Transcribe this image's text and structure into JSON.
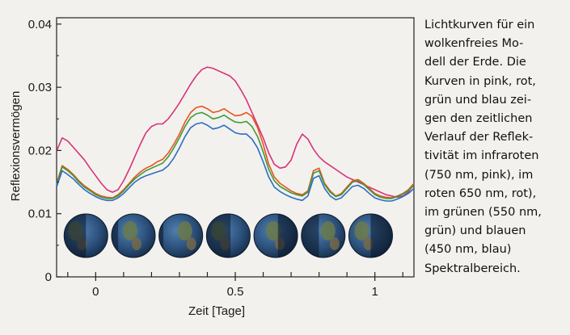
{
  "caption": {
    "lines": [
      "Lichtkurven für ein",
      "wolkenfreies Mo-",
      "dell der Erde. Die",
      "Kurven in pink, rot,",
      "grün und blau zei-",
      "gen den zeitlichen",
      "Verlauf der Reflek-",
      "tivität im infraroten",
      "(750 nm, pink), im",
      "roten 650 nm, rot),",
      "im grünen (550 nm,",
      "grün) und blauen",
      "(450 nm, blau)",
      "Spektralbereich."
    ]
  },
  "chart_data": {
    "type": "line",
    "xlabel": "Zeit  [Tage]",
    "ylabel": "Reflexionsvermögen",
    "xlim": [
      -0.14,
      1.14
    ],
    "ylim": [
      0,
      0.041
    ],
    "x_ticks": [
      0,
      0.5,
      1
    ],
    "x_tick_labels": [
      "0",
      "0.5",
      "1"
    ],
    "y_ticks": [
      0,
      0.01,
      0.02,
      0.03,
      0.04
    ],
    "y_tick_labels": [
      "0",
      "0.01",
      "0.02",
      "0.03",
      "0.04"
    ],
    "x": [
      -0.14,
      -0.12,
      -0.1,
      -0.08,
      -0.06,
      -0.04,
      -0.02,
      0.0,
      0.02,
      0.04,
      0.06,
      0.08,
      0.1,
      0.12,
      0.14,
      0.16,
      0.18,
      0.2,
      0.22,
      0.24,
      0.26,
      0.28,
      0.3,
      0.32,
      0.34,
      0.36,
      0.38,
      0.4,
      0.42,
      0.44,
      0.46,
      0.48,
      0.5,
      0.52,
      0.54,
      0.56,
      0.58,
      0.6,
      0.62,
      0.64,
      0.66,
      0.68,
      0.7,
      0.72,
      0.74,
      0.76,
      0.78,
      0.8,
      0.82,
      0.84,
      0.86,
      0.88,
      0.9,
      0.92,
      0.94,
      0.96,
      0.98,
      1.0,
      1.02,
      1.04,
      1.06,
      1.08,
      1.1,
      1.12,
      1.14
    ],
    "series": [
      {
        "color": "#d8327a",
        "values": [
          0.0199,
          0.022,
          0.0215,
          0.0205,
          0.0195,
          0.0185,
          0.0172,
          0.016,
          0.0148,
          0.0138,
          0.0134,
          0.0138,
          0.0152,
          0.017,
          0.019,
          0.021,
          0.0228,
          0.0238,
          0.0242,
          0.0242,
          0.025,
          0.0262,
          0.0275,
          0.029,
          0.0305,
          0.0318,
          0.0328,
          0.0332,
          0.033,
          0.0326,
          0.0322,
          0.0318,
          0.031,
          0.0296,
          0.028,
          0.026,
          0.024,
          0.022,
          0.0196,
          0.0178,
          0.0172,
          0.0174,
          0.0185,
          0.021,
          0.0226,
          0.0218,
          0.0202,
          0.019,
          0.0182,
          0.0176,
          0.017,
          0.0164,
          0.0158,
          0.0154,
          0.015,
          0.0146,
          0.0142,
          0.0138,
          0.0134,
          0.013,
          0.0128,
          0.0126,
          0.0128,
          0.0134,
          0.0148
        ]
      },
      {
        "color": "#e8531e",
        "values": [
          0.0148,
          0.0176,
          0.017,
          0.0162,
          0.0152,
          0.0144,
          0.0138,
          0.0132,
          0.0128,
          0.0126,
          0.0125,
          0.013,
          0.0138,
          0.0148,
          0.0158,
          0.0166,
          0.0172,
          0.0176,
          0.0182,
          0.0186,
          0.0196,
          0.021,
          0.0226,
          0.0245,
          0.026,
          0.0268,
          0.027,
          0.0266,
          0.026,
          0.0262,
          0.0266,
          0.026,
          0.0255,
          0.0256,
          0.026,
          0.0254,
          0.0236,
          0.021,
          0.0178,
          0.0158,
          0.0148,
          0.0142,
          0.0136,
          0.0132,
          0.013,
          0.0136,
          0.0168,
          0.0172,
          0.0148,
          0.0136,
          0.0128,
          0.0132,
          0.0142,
          0.0152,
          0.0154,
          0.0148,
          0.014,
          0.0132,
          0.0128,
          0.0126,
          0.0125,
          0.0128,
          0.0132,
          0.0138,
          0.0148
        ]
      },
      {
        "color": "#3f9a3a",
        "values": [
          0.0145,
          0.0174,
          0.0168,
          0.016,
          0.015,
          0.0142,
          0.0136,
          0.013,
          0.0126,
          0.0124,
          0.0124,
          0.0128,
          0.0136,
          0.0146,
          0.0155,
          0.0162,
          0.0168,
          0.0172,
          0.0176,
          0.018,
          0.019,
          0.0204,
          0.022,
          0.0238,
          0.0252,
          0.0258,
          0.026,
          0.0256,
          0.025,
          0.0252,
          0.0256,
          0.025,
          0.0245,
          0.0244,
          0.0246,
          0.0238,
          0.0222,
          0.0198,
          0.017,
          0.0152,
          0.0143,
          0.0138,
          0.0133,
          0.013,
          0.0128,
          0.0134,
          0.0164,
          0.0168,
          0.0146,
          0.0134,
          0.0127,
          0.013,
          0.014,
          0.015,
          0.0152,
          0.0146,
          0.0138,
          0.013,
          0.0126,
          0.0124,
          0.0124,
          0.0127,
          0.0131,
          0.0136,
          0.0145
        ]
      },
      {
        "color": "#2b6cc4",
        "values": [
          0.0142,
          0.0168,
          0.0162,
          0.0155,
          0.0146,
          0.0138,
          0.0132,
          0.0127,
          0.0123,
          0.0121,
          0.0121,
          0.0125,
          0.0132,
          0.0141,
          0.015,
          0.0156,
          0.016,
          0.0163,
          0.0166,
          0.0169,
          0.0176,
          0.0188,
          0.0204,
          0.0222,
          0.0236,
          0.0242,
          0.0244,
          0.024,
          0.0234,
          0.0236,
          0.024,
          0.0234,
          0.0228,
          0.0226,
          0.0226,
          0.0218,
          0.0204,
          0.0182,
          0.0158,
          0.0142,
          0.0135,
          0.013,
          0.0126,
          0.0123,
          0.0121,
          0.0128,
          0.0156,
          0.016,
          0.014,
          0.0128,
          0.0122,
          0.0125,
          0.0134,
          0.0143,
          0.0145,
          0.014,
          0.0132,
          0.0125,
          0.0122,
          0.012,
          0.012,
          0.0123,
          0.0127,
          0.0132,
          0.014
        ]
      }
    ]
  },
  "globes": [
    {
      "name": "globe-1"
    },
    {
      "name": "globe-2"
    },
    {
      "name": "globe-3"
    },
    {
      "name": "globe-4"
    },
    {
      "name": "globe-5"
    },
    {
      "name": "globe-6"
    },
    {
      "name": "globe-7"
    }
  ]
}
